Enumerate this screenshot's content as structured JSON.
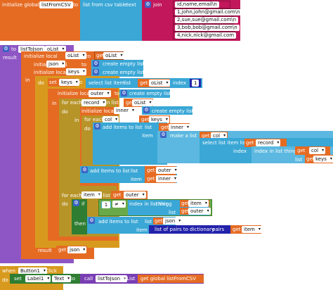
{
  "global_csv": {
    "prefix": "initialize global",
    "name": "listFromCSV",
    "to": "to",
    "call": "list from csv table",
    "text": "text",
    "join": "join",
    "lines": [
      "id,name,email\\n",
      "1,john,john@gmail.com\\n",
      "2,sue,sue@gmail.com\\n",
      "3,bob,bob@gmail.com\\n",
      "4,nick,nick@gmail.com"
    ]
  },
  "proc": {
    "to": "to",
    "name": "listToJson",
    "param": "oList",
    "result": "result",
    "init_local": "initialize local",
    "to_kw": "to",
    "in": "in",
    "do": "do",
    "get": "get",
    "local_olist": "oList",
    "local_json": "json",
    "local_keys": "keys",
    "create_empty_list": "create empty list",
    "set": "set",
    "set_var": "keys",
    "set_to": "to",
    "select_list_item": "select list item",
    "list": "list",
    "index": "index",
    "index_val": "1",
    "outer": "outer",
    "for_each": "for each",
    "item_record": "record",
    "in_list": "in list",
    "inner": "inner",
    "item_col": "col",
    "add_items_to_list": "add items to list",
    "item": "item",
    "make_a_list": "make a list",
    "select_list_item_list": "select list item  list",
    "index_in_list": "index in list  thing",
    "thing": "thing",
    "item_kw": "item",
    "if": "if",
    "then": "then",
    "neq": "≠",
    "list_pairs": "list of pairs to dictionary",
    "pairs": "pairs",
    "result_get": "json"
  },
  "event": {
    "when": "when",
    "component": "Button1",
    "event": ".Click",
    "do": "do",
    "set": "set",
    "target": "Label1",
    "prop": "Text",
    "to": "to",
    "call": "call",
    "proc": "listToJson",
    "param": "oList",
    "get_global": "get global listFromCSV"
  }
}
